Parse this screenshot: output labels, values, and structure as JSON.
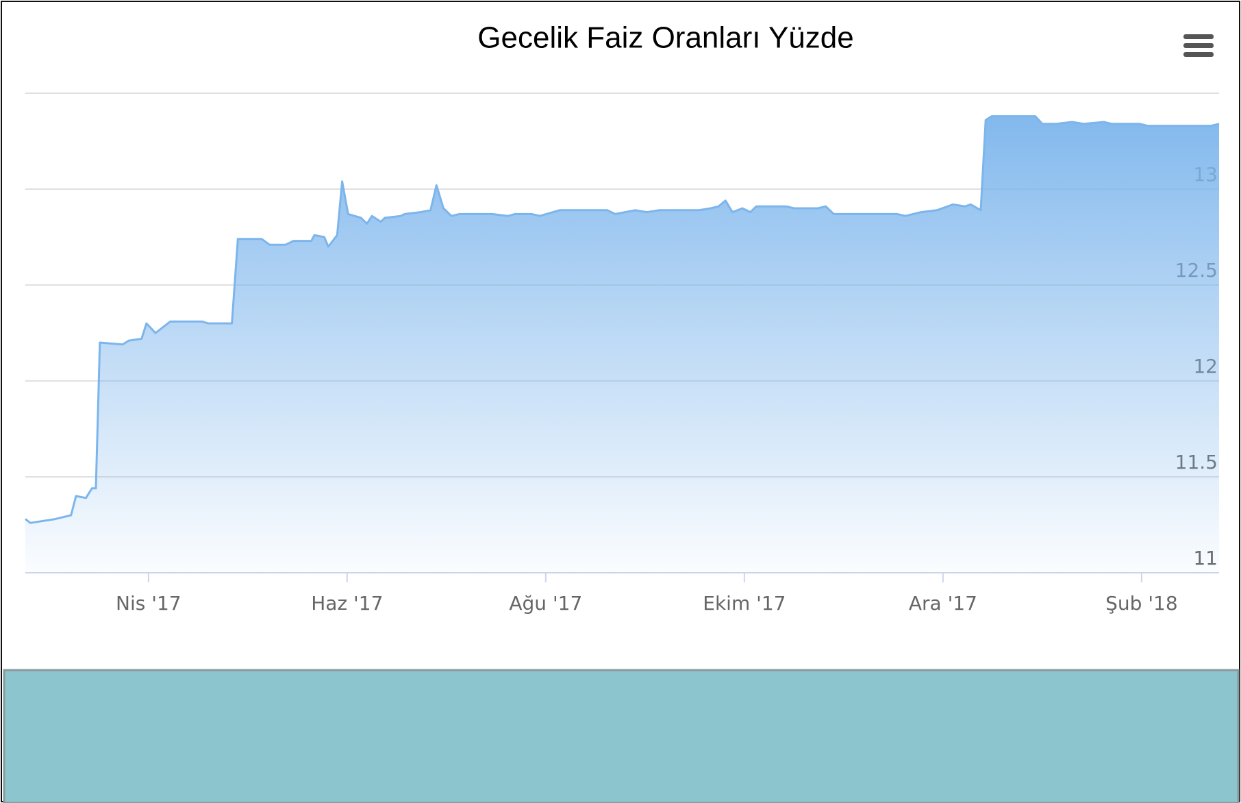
{
  "chart_data": {
    "type": "area",
    "title": "Gecelik Faiz Oranları Yüzde",
    "series": [
      {
        "color": "#7cb5ec",
        "x": [
          2.76,
          2.81,
          3.06,
          3.22,
          3.27,
          3.37,
          3.43,
          3.47,
          3.51,
          3.74,
          3.8,
          3.93,
          3.98,
          4.07,
          4.22,
          4.54,
          4.6,
          4.84,
          4.9,
          5.14,
          5.22,
          5.38,
          5.46,
          5.64,
          5.67,
          5.77,
          5.81,
          5.9,
          5.95,
          6.01,
          6.14,
          6.2,
          6.25,
          6.34,
          6.38,
          6.54,
          6.58,
          6.74,
          6.84,
          6.9,
          6.97,
          7.05,
          7.13,
          7.46,
          7.62,
          7.69,
          7.86,
          7.94,
          8.14,
          8.46,
          8.62,
          8.7,
          8.9,
          9.02,
          9.14,
          9.54,
          9.66,
          9.74,
          9.81,
          9.88,
          9.98,
          10.06,
          10.12,
          10.42,
          10.5,
          10.74,
          10.82,
          10.9,
          11.1,
          11.18,
          11.54,
          11.62,
          11.78,
          11.94,
          12.1,
          12.22,
          12.28,
          12.38,
          12.43,
          12.49,
          12.93,
          13.0,
          13.14,
          13.3,
          13.42,
          13.62,
          13.7,
          13.98,
          14.06,
          14.14,
          14.26,
          14.7,
          14.78
        ],
        "values": [
          11.28,
          11.26,
          11.28,
          11.3,
          11.4,
          11.39,
          11.44,
          11.44,
          12.2,
          12.19,
          12.21,
          12.22,
          12.3,
          12.25,
          12.31,
          12.31,
          12.3,
          12.3,
          12.74,
          12.74,
          12.71,
          12.71,
          12.73,
          12.73,
          12.76,
          12.75,
          12.7,
          12.76,
          13.04,
          12.87,
          12.85,
          12.82,
          12.86,
          12.83,
          12.85,
          12.86,
          12.87,
          12.88,
          12.89,
          13.02,
          12.9,
          12.86,
          12.87,
          12.87,
          12.86,
          12.87,
          12.87,
          12.86,
          12.89,
          12.89,
          12.89,
          12.87,
          12.89,
          12.88,
          12.89,
          12.89,
          12.9,
          12.91,
          12.94,
          12.88,
          12.9,
          12.88,
          12.91,
          12.91,
          12.9,
          12.9,
          12.91,
          12.87,
          12.87,
          12.87,
          12.87,
          12.86,
          12.88,
          12.89,
          12.92,
          12.91,
          12.92,
          12.89,
          13.36,
          13.38,
          13.38,
          13.34,
          13.34,
          13.35,
          13.34,
          13.35,
          13.34,
          13.34,
          13.33,
          13.33,
          13.33,
          13.33,
          13.34
        ]
      }
    ],
    "xlim": [
      2.76,
      14.78
    ],
    "xticks": [
      {
        "value": 4,
        "label": "Nis '17"
      },
      {
        "value": 6,
        "label": "Haz '17"
      },
      {
        "value": 8,
        "label": "Ağu '17"
      },
      {
        "value": 10,
        "label": "Ekim '17"
      },
      {
        "value": 12,
        "label": "Ara '17"
      },
      {
        "value": 14,
        "label": "Şub '18"
      }
    ],
    "ylim": [
      11,
      13.5
    ],
    "yticks": [
      11,
      11.5,
      12,
      12.5,
      13
    ],
    "grid": true
  }
}
